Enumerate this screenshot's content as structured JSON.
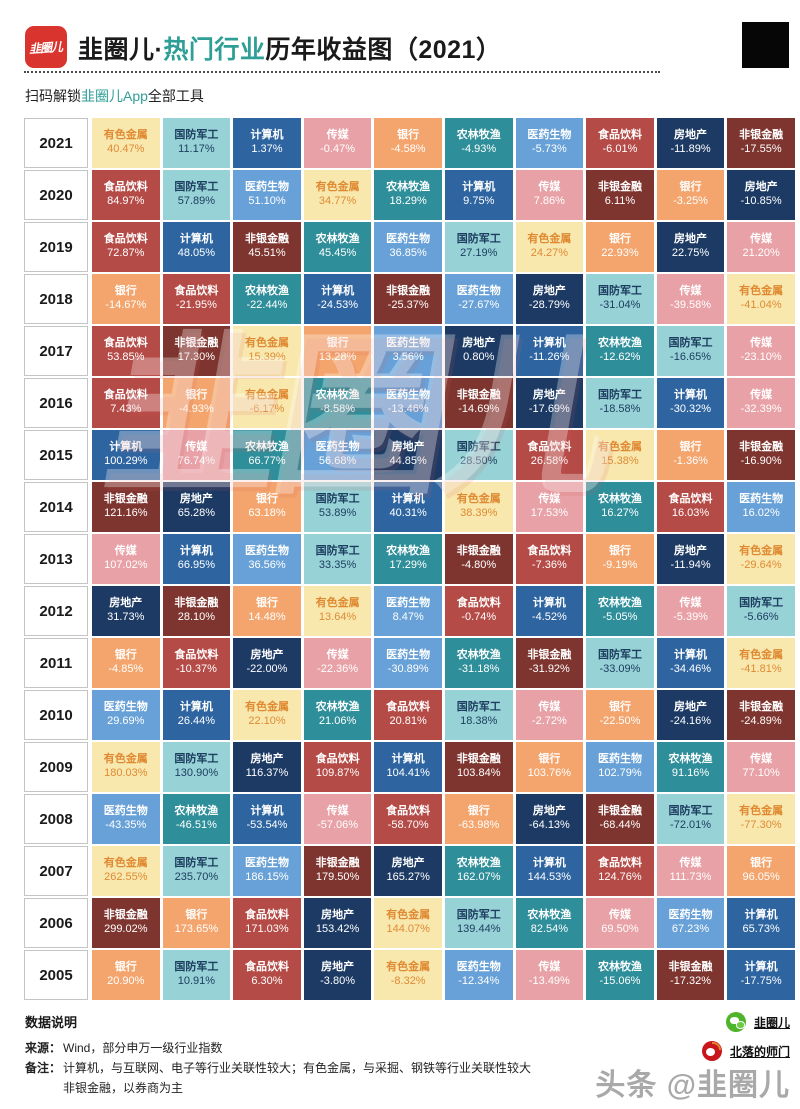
{
  "header": {
    "logo_text": "韭圈儿",
    "title_prefix": "韭圈儿·",
    "title_highlight": "热门行业",
    "title_suffix": "历年收益图（2021）",
    "subtitle_prefix": "扫码解锁",
    "subtitle_highlight": "韭圈儿App",
    "subtitle_suffix": "全部工具",
    "accent_color": "#2f9e96",
    "logo_color": "#d9342e"
  },
  "watermark_text": "韭圈儿",
  "chart_data": {
    "type": "heatmap",
    "title": "韭圈儿·热门行业历年收益图（2021）",
    "legend_position": "none",
    "industry_colors": {
      "有色金属": {
        "bg": "#f8e8ae",
        "text": "#df8a33"
      },
      "国防军工": {
        "bg": "#97d2d6",
        "text": "#1d3e60"
      },
      "计算机": {
        "bg": "#2e65a1",
        "text": "#ffffff"
      },
      "传媒": {
        "bg": "#e8a1a6",
        "text": "#ffffff"
      },
      "银行": {
        "bg": "#f3a56d",
        "text": "#ffffff"
      },
      "农林牧渔": {
        "bg": "#2e8e99",
        "text": "#ffffff"
      },
      "医药生物": {
        "bg": "#68a1d7",
        "text": "#ffffff"
      },
      "食品饮料": {
        "bg": "#b54b47",
        "text": "#ffffff"
      },
      "房地产": {
        "bg": "#1c3a64",
        "text": "#ffffff"
      },
      "非银金融": {
        "bg": "#7e352f",
        "text": "#ffffff"
      }
    },
    "rows": [
      {
        "year": "2021",
        "cells": [
          {
            "industry": "有色金属",
            "value": "40.47%"
          },
          {
            "industry": "国防军工",
            "value": "11.17%"
          },
          {
            "industry": "计算机",
            "value": "1.37%"
          },
          {
            "industry": "传媒",
            "value": "-0.47%"
          },
          {
            "industry": "银行",
            "value": "-4.58%"
          },
          {
            "industry": "农林牧渔",
            "value": "-4.93%"
          },
          {
            "industry": "医药生物",
            "value": "-5.73%"
          },
          {
            "industry": "食品饮料",
            "value": "-6.01%"
          },
          {
            "industry": "房地产",
            "value": "-11.89%"
          },
          {
            "industry": "非银金融",
            "value": "-17.55%"
          }
        ]
      },
      {
        "year": "2020",
        "cells": [
          {
            "industry": "食品饮料",
            "value": "84.97%"
          },
          {
            "industry": "国防军工",
            "value": "57.89%"
          },
          {
            "industry": "医药生物",
            "value": "51.10%"
          },
          {
            "industry": "有色金属",
            "value": "34.77%"
          },
          {
            "industry": "农林牧渔",
            "value": "18.29%"
          },
          {
            "industry": "计算机",
            "value": "9.75%"
          },
          {
            "industry": "传媒",
            "value": "7.86%"
          },
          {
            "industry": "非银金融",
            "value": "6.11%"
          },
          {
            "industry": "银行",
            "value": "-3.25%"
          },
          {
            "industry": "房地产",
            "value": "-10.85%"
          }
        ]
      },
      {
        "year": "2019",
        "cells": [
          {
            "industry": "食品饮料",
            "value": "72.87%"
          },
          {
            "industry": "计算机",
            "value": "48.05%"
          },
          {
            "industry": "非银金融",
            "value": "45.51%"
          },
          {
            "industry": "农林牧渔",
            "value": "45.45%"
          },
          {
            "industry": "医药生物",
            "value": "36.85%"
          },
          {
            "industry": "国防军工",
            "value": "27.19%"
          },
          {
            "industry": "有色金属",
            "value": "24.27%"
          },
          {
            "industry": "银行",
            "value": "22.93%"
          },
          {
            "industry": "房地产",
            "value": "22.75%"
          },
          {
            "industry": "传媒",
            "value": "21.20%"
          }
        ]
      },
      {
        "year": "2018",
        "cells": [
          {
            "industry": "银行",
            "value": "-14.67%"
          },
          {
            "industry": "食品饮料",
            "value": "-21.95%"
          },
          {
            "industry": "农林牧渔",
            "value": "-22.44%"
          },
          {
            "industry": "计算机",
            "value": "-24.53%"
          },
          {
            "industry": "非银金融",
            "value": "-25.37%"
          },
          {
            "industry": "医药生物",
            "value": "-27.67%"
          },
          {
            "industry": "房地产",
            "value": "-28.79%"
          },
          {
            "industry": "国防军工",
            "value": "-31.04%"
          },
          {
            "industry": "传媒",
            "value": "-39.58%"
          },
          {
            "industry": "有色金属",
            "value": "-41.04%"
          }
        ]
      },
      {
        "year": "2017",
        "cells": [
          {
            "industry": "食品饮料",
            "value": "53.85%"
          },
          {
            "industry": "非银金融",
            "value": "17.30%"
          },
          {
            "industry": "有色金属",
            "value": "15.39%"
          },
          {
            "industry": "银行",
            "value": "13.28%"
          },
          {
            "industry": "医药生物",
            "value": "3.56%"
          },
          {
            "industry": "房地产",
            "value": "0.80%"
          },
          {
            "industry": "计算机",
            "value": "-11.26%"
          },
          {
            "industry": "农林牧渔",
            "value": "-12.62%"
          },
          {
            "industry": "国防军工",
            "value": "-16.65%"
          },
          {
            "industry": "传媒",
            "value": "-23.10%"
          }
        ]
      },
      {
        "year": "2016",
        "cells": [
          {
            "industry": "食品饮料",
            "value": "7.43%"
          },
          {
            "industry": "银行",
            "value": "-4.93%"
          },
          {
            "industry": "有色金属",
            "value": "-6.17%"
          },
          {
            "industry": "农林牧渔",
            "value": "-8.58%"
          },
          {
            "industry": "医药生物",
            "value": "-13.46%"
          },
          {
            "industry": "非银金融",
            "value": "-14.69%"
          },
          {
            "industry": "房地产",
            "value": "-17.69%"
          },
          {
            "industry": "国防军工",
            "value": "-18.58%"
          },
          {
            "industry": "计算机",
            "value": "-30.32%"
          },
          {
            "industry": "传媒",
            "value": "-32.39%"
          }
        ]
      },
      {
        "year": "2015",
        "cells": [
          {
            "industry": "计算机",
            "value": "100.29%"
          },
          {
            "industry": "传媒",
            "value": "76.74%"
          },
          {
            "industry": "农林牧渔",
            "value": "66.77%"
          },
          {
            "industry": "医药生物",
            "value": "56.68%"
          },
          {
            "industry": "房地产",
            "value": "44.85%"
          },
          {
            "industry": "国防军工",
            "value": "28.50%"
          },
          {
            "industry": "食品饮料",
            "value": "26.58%"
          },
          {
            "industry": "有色金属",
            "value": "15.38%"
          },
          {
            "industry": "银行",
            "value": "-1.36%"
          },
          {
            "industry": "非银金融",
            "value": "-16.90%"
          }
        ]
      },
      {
        "year": "2014",
        "cells": [
          {
            "industry": "非银金融",
            "value": "121.16%"
          },
          {
            "industry": "房地产",
            "value": "65.28%"
          },
          {
            "industry": "银行",
            "value": "63.18%"
          },
          {
            "industry": "国防军工",
            "value": "53.89%"
          },
          {
            "industry": "计算机",
            "value": "40.31%"
          },
          {
            "industry": "有色金属",
            "value": "38.39%"
          },
          {
            "industry": "传媒",
            "value": "17.53%"
          },
          {
            "industry": "农林牧渔",
            "value": "16.27%"
          },
          {
            "industry": "食品饮料",
            "value": "16.03%"
          },
          {
            "industry": "医药生物",
            "value": "16.02%"
          }
        ]
      },
      {
        "year": "2013",
        "cells": [
          {
            "industry": "传媒",
            "value": "107.02%"
          },
          {
            "industry": "计算机",
            "value": "66.95%"
          },
          {
            "industry": "医药生物",
            "value": "36.56%"
          },
          {
            "industry": "国防军工",
            "value": "33.35%"
          },
          {
            "industry": "农林牧渔",
            "value": "17.29%"
          },
          {
            "industry": "非银金融",
            "value": "-4.80%"
          },
          {
            "industry": "食品饮料",
            "value": "-7.36%"
          },
          {
            "industry": "银行",
            "value": "-9.19%"
          },
          {
            "industry": "房地产",
            "value": "-11.94%"
          },
          {
            "industry": "有色金属",
            "value": "-29.64%"
          }
        ]
      },
      {
        "year": "2012",
        "cells": [
          {
            "industry": "房地产",
            "value": "31.73%"
          },
          {
            "industry": "非银金融",
            "value": "28.10%"
          },
          {
            "industry": "银行",
            "value": "14.48%"
          },
          {
            "industry": "有色金属",
            "value": "13.64%"
          },
          {
            "industry": "医药生物",
            "value": "8.47%"
          },
          {
            "industry": "食品饮料",
            "value": "-0.74%"
          },
          {
            "industry": "计算机",
            "value": "-4.52%"
          },
          {
            "industry": "农林牧渔",
            "value": "-5.05%"
          },
          {
            "industry": "传媒",
            "value": "-5.39%"
          },
          {
            "industry": "国防军工",
            "value": "-5.66%"
          }
        ]
      },
      {
        "year": "2011",
        "cells": [
          {
            "industry": "银行",
            "value": "-4.85%"
          },
          {
            "industry": "食品饮料",
            "value": "-10.37%"
          },
          {
            "industry": "房地产",
            "value": "-22.00%"
          },
          {
            "industry": "传媒",
            "value": "-22.36%"
          },
          {
            "industry": "医药生物",
            "value": "-30.89%"
          },
          {
            "industry": "农林牧渔",
            "value": "-31.18%"
          },
          {
            "industry": "非银金融",
            "value": "-31.92%"
          },
          {
            "industry": "国防军工",
            "value": "-33.09%"
          },
          {
            "industry": "计算机",
            "value": "-34.46%"
          },
          {
            "industry": "有色金属",
            "value": "-41.81%"
          }
        ]
      },
      {
        "year": "2010",
        "cells": [
          {
            "industry": "医药生物",
            "value": "29.69%"
          },
          {
            "industry": "计算机",
            "value": "26.44%"
          },
          {
            "industry": "有色金属",
            "value": "22.10%"
          },
          {
            "industry": "农林牧渔",
            "value": "21.06%"
          },
          {
            "industry": "食品饮料",
            "value": "20.81%"
          },
          {
            "industry": "国防军工",
            "value": "18.38%"
          },
          {
            "industry": "传媒",
            "value": "-2.72%"
          },
          {
            "industry": "银行",
            "value": "-22.50%"
          },
          {
            "industry": "房地产",
            "value": "-24.16%"
          },
          {
            "industry": "非银金融",
            "value": "-24.89%"
          }
        ]
      },
      {
        "year": "2009",
        "cells": [
          {
            "industry": "有色金属",
            "value": "180.03%"
          },
          {
            "industry": "国防军工",
            "value": "130.90%"
          },
          {
            "industry": "房地产",
            "value": "116.37%"
          },
          {
            "industry": "食品饮料",
            "value": "109.87%"
          },
          {
            "industry": "计算机",
            "value": "104.41%"
          },
          {
            "industry": "非银金融",
            "value": "103.84%"
          },
          {
            "industry": "银行",
            "value": "103.76%"
          },
          {
            "industry": "医药生物",
            "value": "102.79%"
          },
          {
            "industry": "农林牧渔",
            "value": "91.16%"
          },
          {
            "industry": "传媒",
            "value": "77.10%"
          }
        ]
      },
      {
        "year": "2008",
        "cells": [
          {
            "industry": "医药生物",
            "value": "-43.35%"
          },
          {
            "industry": "农林牧渔",
            "value": "-46.51%"
          },
          {
            "industry": "计算机",
            "value": "-53.54%"
          },
          {
            "industry": "传媒",
            "value": "-57.06%"
          },
          {
            "industry": "食品饮料",
            "value": "-58.70%"
          },
          {
            "industry": "银行",
            "value": "-63.98%"
          },
          {
            "industry": "房地产",
            "value": "-64.13%"
          },
          {
            "industry": "非银金融",
            "value": "-68.44%"
          },
          {
            "industry": "国防军工",
            "value": "-72.01%"
          },
          {
            "industry": "有色金属",
            "value": "-77.30%"
          }
        ]
      },
      {
        "year": "2007",
        "cells": [
          {
            "industry": "有色金属",
            "value": "262.55%"
          },
          {
            "industry": "国防军工",
            "value": "235.70%"
          },
          {
            "industry": "医药生物",
            "value": "186.15%"
          },
          {
            "industry": "非银金融",
            "value": "179.50%"
          },
          {
            "industry": "房地产",
            "value": "165.27%"
          },
          {
            "industry": "农林牧渔",
            "value": "162.07%"
          },
          {
            "industry": "计算机",
            "value": "144.53%"
          },
          {
            "industry": "食品饮料",
            "value": "124.76%"
          },
          {
            "industry": "传媒",
            "value": "111.73%"
          },
          {
            "industry": "银行",
            "value": "96.05%"
          }
        ]
      },
      {
        "year": "2006",
        "cells": [
          {
            "industry": "非银金融",
            "value": "299.02%"
          },
          {
            "industry": "银行",
            "value": "173.65%"
          },
          {
            "industry": "食品饮料",
            "value": "171.03%"
          },
          {
            "industry": "房地产",
            "value": "153.42%"
          },
          {
            "industry": "有色金属",
            "value": "144.07%"
          },
          {
            "industry": "国防军工",
            "value": "139.44%"
          },
          {
            "industry": "农林牧渔",
            "value": "82.54%"
          },
          {
            "industry": "传媒",
            "value": "69.50%"
          },
          {
            "industry": "医药生物",
            "value": "67.23%"
          },
          {
            "industry": "计算机",
            "value": "65.73%"
          }
        ]
      },
      {
        "year": "2005",
        "cells": [
          {
            "industry": "银行",
            "value": "20.90%"
          },
          {
            "industry": "国防军工",
            "value": "10.91%"
          },
          {
            "industry": "食品饮料",
            "value": "6.30%"
          },
          {
            "industry": "房地产",
            "value": "-3.80%"
          },
          {
            "industry": "有色金属",
            "value": "-8.32%"
          },
          {
            "industry": "医药生物",
            "value": "-12.34%"
          },
          {
            "industry": "传媒",
            "value": "-13.49%"
          },
          {
            "industry": "农林牧渔",
            "value": "-15.06%"
          },
          {
            "industry": "非银金融",
            "value": "-17.32%"
          },
          {
            "industry": "计算机",
            "value": "-17.75%"
          }
        ]
      }
    ]
  },
  "footer": {
    "section_title": "数据说明",
    "source_label": "来源：",
    "source_text": "Wind，部分申万一级行业指数",
    "note_label": "备注：",
    "note_text": "计算机，与互联网、电子等行业关联性较大；有色金属，与采掘、钢铁等行业关联性较大",
    "note_text2": "非银金融，以券商为主",
    "wechat_name": "韭圈儿",
    "weibo_name": "北落的师门",
    "toutiao_watermark": "头条 @韭圈儿"
  }
}
